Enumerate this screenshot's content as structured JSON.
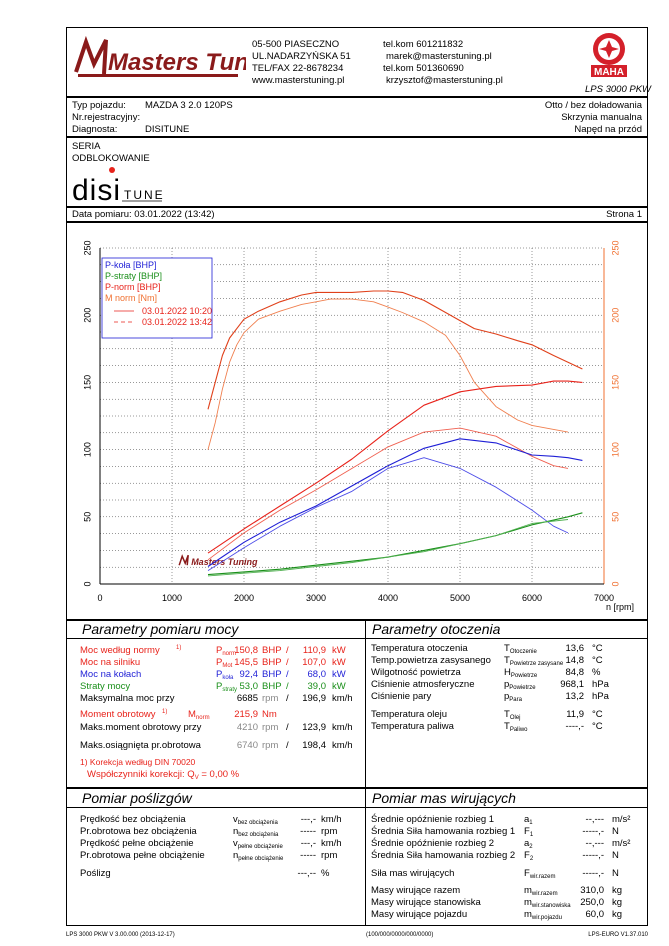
{
  "header": {
    "logo_text": "Masters Tuning",
    "address_line1": "05-500 PIASECZNO",
    "address_line2": "UL.NADARZYŃSKA 51",
    "address_line3": "TEL/FAX 22-8678234",
    "address_line4": "www.masterstuning.pl",
    "contact_line1": "tel.kom 601211832",
    "contact_line2": "marek@masterstuning.pl",
    "contact_line3": "tel.kom 501360690",
    "contact_line4": "krzysztof@masterstuning.pl",
    "brand_logo_text": "MAHA",
    "brand_seal_text": "Maschinenbau Haldenwang",
    "model": "LPS 3000 PKW"
  },
  "vehicle": {
    "type_label": "Typ pojazdu:",
    "type_value": "MAZDA 3 2.0 120PS",
    "reg_label": "Nr.rejestracyjny:",
    "reg_value": "",
    "diag_label": "Diagnosta:",
    "diag_value": "DISITUNE",
    "right1": "Otto / bez doładowania",
    "right2": "Skrzynia manualna",
    "right3": "Napęd na przód"
  },
  "notes": {
    "line1": "SERIA",
    "line2": "ODBLOKOWANIE",
    "logo_disi": "disi",
    "logo_tune": "TUNE"
  },
  "date_bar": {
    "date": "Data pomiaru: 03.01.2022 (13:42)",
    "page": "Strona 1"
  },
  "chart_data": {
    "type": "line",
    "xlabel": "n [rpm]",
    "xlim": [
      0,
      7000
    ],
    "ylim_left": [
      0,
      250
    ],
    "ylim_right": [
      0,
      250
    ],
    "x_ticks": [
      0,
      1000,
      2000,
      3000,
      4000,
      5000,
      6000,
      7000
    ],
    "y_ticks": [
      0,
      50,
      100,
      150,
      200,
      250
    ],
    "legend_placement": "top-left",
    "legend": [
      {
        "label": "P-koła [BHP]",
        "color": "#1f1fd6"
      },
      {
        "label": "P-straty [BHP]",
        "color": "#1a8f1a"
      },
      {
        "label": "P-norm [BHP]",
        "color": "#e8231b"
      },
      {
        "label": "M norm [Nm]",
        "color": "#f07030"
      }
    ],
    "runs": [
      {
        "label": "03.01.2022 10:20",
        "style": "solid"
      },
      {
        "label": "03.01.2022 13:42",
        "style": "dashed"
      }
    ],
    "watermark": "Masters Tuning",
    "series": [
      {
        "name": "M norm 10:20",
        "color": "#e0401a",
        "width": 1.1,
        "x": [
          1500,
          1600,
          1700,
          1800,
          1900,
          2000,
          2200,
          2500,
          2800,
          3000,
          3200,
          3500,
          3800,
          4000,
          4200,
          4500,
          4800,
          5000,
          5200,
          5500,
          5800,
          6000,
          6300,
          6500,
          6700
        ],
        "y": [
          130,
          150,
          170,
          183,
          190,
          197,
          203,
          210,
          215,
          217,
          217,
          217,
          218,
          218,
          217,
          211,
          202,
          196,
          190,
          186,
          181,
          178,
          170,
          165,
          160
        ]
      },
      {
        "name": "M norm 13:42",
        "color": "#f08050",
        "width": 0.9,
        "x": [
          1500,
          1600,
          1700,
          1800,
          1900,
          2000,
          2200,
          2500,
          2800,
          3000,
          3200,
          3500,
          3800,
          4000,
          4200,
          4500,
          4800,
          5000,
          5200,
          5500,
          5800,
          6000,
          6300,
          6500
        ],
        "y": [
          100,
          120,
          145,
          165,
          178,
          187,
          197,
          203,
          208,
          210,
          212,
          212,
          210,
          206,
          202,
          195,
          185,
          170,
          150,
          132,
          122,
          118,
          115,
          113
        ]
      },
      {
        "name": "P-norm 10:20",
        "color": "#e8231b",
        "width": 1.1,
        "x": [
          1500,
          2000,
          2500,
          3000,
          3500,
          4000,
          4500,
          5000,
          5500,
          6000,
          6300,
          6500,
          6700
        ],
        "y": [
          23,
          41,
          58,
          75,
          93,
          114,
          133,
          143,
          147,
          148,
          151,
          151,
          150
        ]
      },
      {
        "name": "P-norm 13:42",
        "color": "#f06050",
        "width": 0.9,
        "x": [
          1500,
          2000,
          2500,
          3000,
          3500,
          4000,
          4500,
          5000,
          5500,
          6000,
          6300,
          6500
        ],
        "y": [
          18,
          38,
          55,
          70,
          86,
          102,
          113,
          116,
          110,
          95,
          88,
          86
        ]
      },
      {
        "name": "P-koła 10:20",
        "color": "#1f1fd6",
        "width": 1.1,
        "x": [
          1500,
          2000,
          2500,
          3000,
          3500,
          4000,
          4500,
          5000,
          5500,
          6000,
          6300,
          6500,
          6700
        ],
        "y": [
          13,
          31,
          46,
          58,
          73,
          88,
          101,
          108,
          105,
          96,
          95,
          94,
          92
        ]
      },
      {
        "name": "P-koła 13:42",
        "color": "#4d4de8",
        "width": 0.9,
        "x": [
          1500,
          2000,
          2500,
          3000,
          3500,
          4000,
          4500,
          5000,
          5500,
          6000,
          6300,
          6500
        ],
        "y": [
          10,
          27,
          43,
          57,
          69,
          86,
          94,
          86,
          72,
          55,
          43,
          38
        ]
      },
      {
        "name": "P-straty 10:20",
        "color": "#1a8f1a",
        "width": 1.1,
        "x": [
          1500,
          2000,
          2500,
          3000,
          3500,
          4000,
          4500,
          5000,
          5500,
          6000,
          6500,
          6700
        ],
        "y": [
          7,
          9,
          11,
          14,
          17,
          20,
          25,
          30,
          36,
          44,
          50,
          53
        ]
      },
      {
        "name": "P-straty 13:42",
        "color": "#50b050",
        "width": 0.9,
        "x": [
          1500,
          2000,
          2500,
          3000,
          3500,
          4000,
          4500,
          5000,
          5500,
          6000,
          6500
        ],
        "y": [
          6,
          8,
          10,
          13,
          16,
          20,
          24,
          30,
          36,
          45,
          48
        ]
      }
    ]
  },
  "params": {
    "title": "Parametry pomiaru mocy",
    "rows": [
      {
        "label": "Moc według normy",
        "note": "1)",
        "sym": "P",
        "symsub": "norm",
        "v1": "150,8",
        "u1": "BHP",
        "sep": "/",
        "v2": "110,9",
        "u2": "kW",
        "cls": "red"
      },
      {
        "label": "Moc na silniku",
        "note": "",
        "sym": "P",
        "symsub": "Mot",
        "v1": "145,5",
        "u1": "BHP",
        "sep": "/",
        "v2": "107,0",
        "u2": "kW",
        "cls": "red"
      },
      {
        "label": "Moc na kołach",
        "note": "",
        "sym": "P",
        "symsub": "koła",
        "v1": "92,4",
        "u1": "BHP",
        "sep": "/",
        "v2": "68,0",
        "u2": "kW",
        "cls": "blue"
      },
      {
        "label": "Straty mocy",
        "note": "",
        "sym": "P",
        "symsub": "straty",
        "v1": "53,0",
        "u1": "BHP",
        "sep": "/",
        "v2": "39,0",
        "u2": "kW",
        "cls": "green"
      },
      {
        "label": "Maksymalna moc przy",
        "note": "",
        "sym": "",
        "symsub": "",
        "v1": "6685",
        "u1": "rpm",
        "sep": "/",
        "v2": "196,9",
        "u2": "km/h",
        "cls": "mix"
      }
    ],
    "torque": {
      "label": "Moment obrotowy",
      "note": "1)",
      "sym": "M",
      "symsub": "norm",
      "value": "215,9",
      "unit": "Nm"
    },
    "torque_at": {
      "label": "Maks.moment obrotowy przy",
      "v1": "4210",
      "u1": "rpm",
      "sep": "/",
      "v2": "123,9",
      "u2": "km/h"
    },
    "max_rpm": {
      "label": "Maks.osiągnięta pr.obrotowa",
      "v1": "6740",
      "u1": "rpm",
      "sep": "/",
      "v2": "198,4",
      "u2": "km/h"
    },
    "correction1": "1) Korekcja według DIN 70020",
    "correction2": "Współczynniki korekcji: Q",
    "correction_sub": "V",
    "correction_val": " =    0,00 %"
  },
  "ambient": {
    "title": "Parametry otoczenia",
    "rows": [
      {
        "label": "Temperatura otoczenia",
        "sym": "T",
        "symsub": "Otoczenie",
        "value": "13,6",
        "unit": "°C"
      },
      {
        "label": "Temp.powietrza zasysanego",
        "sym": "T",
        "symsub": "Powietrze zasysane",
        "value": "14,8",
        "unit": "°C"
      },
      {
        "label": "Wilgotność powietrza",
        "sym": "H",
        "symsub": "Powietrze",
        "value": "84,8",
        "unit": "%"
      },
      {
        "label": "Ciśnienie atmosferyczne",
        "sym": "p",
        "symsub": "Powietrze",
        "value": "968,1",
        "unit": "hPa"
      },
      {
        "label": "Ciśnienie pary",
        "sym": "p",
        "symsub": "Para",
        "value": "13,2",
        "unit": "hPa"
      }
    ],
    "rows2": [
      {
        "label": "Temperatura oleju",
        "sym": "T",
        "symsub": "Olej",
        "value": "11,9",
        "unit": "°C"
      },
      {
        "label": "Temperatura paliwa",
        "sym": "T",
        "symsub": "Paliwo",
        "value": "----,-",
        "unit": "°C"
      }
    ]
  },
  "slip": {
    "title": "Pomiar poślizgów",
    "rows": [
      {
        "label": "Prędkość bez obciążenia",
        "sym": "v",
        "symsub": "bez obciążenia",
        "value": "---,-",
        "unit": "km/h"
      },
      {
        "label": "Pr.obrotowa bez obciążenia",
        "sym": "n",
        "symsub": "bez obciążenia",
        "value": "-----",
        "unit": "rpm"
      },
      {
        "label": "Prędkość pełne obciążenie",
        "sym": "v",
        "symsub": "pełne obciążenie",
        "value": "---,-",
        "unit": "km/h"
      },
      {
        "label": "Pr.obrotowa pełne obciążenie",
        "sym": "n",
        "symsub": "pełne obciążenie",
        "value": "-----",
        "unit": "rpm"
      }
    ],
    "slip_label": "Poślizg",
    "slip_value": "---,--",
    "slip_unit": "%"
  },
  "masses": {
    "title": "Pomiar mas wirujących",
    "rows": [
      {
        "label": "Średnie opóźnienie rozbieg 1",
        "sym": "a",
        "symsub": "1",
        "value": "--,---",
        "unit": "m/s²"
      },
      {
        "label": "Średnia Siła hamowania rozbieg 1",
        "sym": "F",
        "symsub": "1",
        "value": "-----,-",
        "unit": "N"
      },
      {
        "label": "Średnie opóźnienie rozbieg 2",
        "sym": "a",
        "symsub": "2",
        "value": "--,---",
        "unit": "m/s²"
      },
      {
        "label": "Średnia Siła hamowania rozbieg 2",
        "sym": "F",
        "symsub": "2",
        "value": "-----,-",
        "unit": "N"
      }
    ],
    "force_row": {
      "label": "Siła mas wirujących",
      "sym": "F",
      "symsub": "wir.razem",
      "value": "-----,-",
      "unit": "N"
    },
    "mass_rows": [
      {
        "label": "Masy wirujące razem",
        "sym": "m",
        "symsub": "wir.razem",
        "value": "310,0",
        "unit": "kg"
      },
      {
        "label": "Masy wirujące stanowiska",
        "sym": "m",
        "symsub": "wir.stanowiska",
        "value": "250,0",
        "unit": "kg"
      },
      {
        "label": "Masy wirujące pojazdu",
        "sym": "m",
        "symsub": "wir.pojazdu",
        "value": "60,0",
        "unit": "kg"
      }
    ]
  },
  "footer": {
    "left": "LPS 3000 PKW V 3.00.000 (2013-12-17)",
    "center": "(100/000/0000/000/0000)",
    "right": "LPS-EURO V1.37.010"
  }
}
